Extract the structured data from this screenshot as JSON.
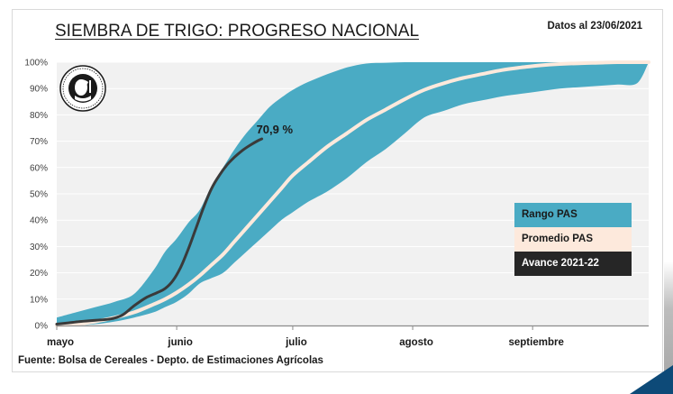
{
  "header": {
    "title": "SIEMBRA DE TRIGO: PROGRESO NACIONAL",
    "date_note": "Datos al 23/06/2021"
  },
  "footer": {
    "source": "Fuente: Bolsa de Cereales - Depto. de Estimaciones Agrícolas"
  },
  "logo": {
    "text": "Concordia et Labore · Buenos Aires · 1854"
  },
  "colors": {
    "range": "#4aabc4",
    "average": "#fde9dc",
    "current": "#3a3a3a",
    "plot_bg": "#f1f1f1",
    "grid": "#ffffff",
    "legend_dark": "#262626"
  },
  "chart_data": {
    "type": "area",
    "title": "SIEMBRA DE TRIGO: PROGRESO NACIONAL",
    "xlabel": "",
    "ylabel": "",
    "x_unit": "days since May 1",
    "xlim": [
      0,
      153
    ],
    "ylim": [
      0,
      100
    ],
    "grid": true,
    "x_ticks": [
      {
        "value": 0,
        "label": "mayo"
      },
      {
        "value": 31,
        "label": "junio"
      },
      {
        "value": 61,
        "label": "julio"
      },
      {
        "value": 92,
        "label": "agosto"
      },
      {
        "value": 123,
        "label": "septiembre"
      }
    ],
    "y_ticks": [
      {
        "value": 0,
        "label": "0%"
      },
      {
        "value": 10,
        "label": "10%"
      },
      {
        "value": 20,
        "label": "20%"
      },
      {
        "value": 30,
        "label": "30%"
      },
      {
        "value": 40,
        "label": "40%"
      },
      {
        "value": 50,
        "label": "50%"
      },
      {
        "value": 60,
        "label": "60%"
      },
      {
        "value": 70,
        "label": "70%"
      },
      {
        "value": 80,
        "label": "80%"
      },
      {
        "value": 90,
        "label": "90%"
      },
      {
        "value": 100,
        "label": "100%"
      }
    ],
    "series": [
      {
        "name": "Rango PAS",
        "kind": "band",
        "x": [
          0,
          5,
          10,
          15,
          20,
          25,
          28,
          31,
          34,
          37,
          40,
          43,
          46,
          49,
          52,
          55,
          58,
          61,
          65,
          70,
          75,
          80,
          85,
          90,
          95,
          100,
          105,
          110,
          115,
          120,
          125,
          130,
          135,
          140,
          145,
          150,
          153
        ],
        "upper": [
          3,
          5,
          7,
          9,
          12,
          21,
          28,
          33,
          39,
          44,
          53,
          60,
          67,
          73,
          78,
          83,
          86.5,
          89.5,
          92.5,
          95.5,
          98,
          99.5,
          99.8,
          100,
          100,
          100,
          100,
          100,
          100,
          100,
          100,
          100,
          100,
          100,
          100,
          100,
          100
        ],
        "lower": [
          0,
          0,
          0.5,
          1.5,
          3,
          5,
          7,
          9,
          12,
          16,
          18,
          20,
          24,
          28,
          32,
          36,
          40,
          43,
          47,
          51,
          56,
          62,
          67,
          73,
          79,
          81.5,
          84,
          85.5,
          87,
          88,
          89,
          90,
          90.5,
          91,
          91.5,
          92,
          100
        ]
      },
      {
        "name": "Promedio PAS",
        "kind": "line",
        "x": [
          0,
          5,
          10,
          15,
          20,
          25,
          28,
          31,
          34,
          37,
          40,
          43,
          46,
          49,
          52,
          55,
          58,
          61,
          65,
          70,
          75,
          80,
          85,
          90,
          95,
          100,
          105,
          110,
          115,
          120,
          125,
          130,
          135,
          140,
          145,
          150,
          153
        ],
        "values": [
          0,
          0.5,
          1.5,
          3,
          5,
          8,
          10,
          12.5,
          15.5,
          19,
          23,
          27,
          32,
          37,
          42,
          47,
          52,
          57,
          62,
          68,
          73,
          78,
          82,
          86,
          89.5,
          92,
          94,
          95.5,
          97,
          98,
          98.8,
          99.3,
          99.6,
          99.8,
          100,
          100,
          100
        ]
      },
      {
        "name": "Avance 2021-22",
        "kind": "line",
        "x": [
          0,
          3,
          6,
          10,
          14,
          17,
          20,
          23,
          26,
          28,
          30,
          32,
          34,
          36,
          38,
          40,
          42,
          44,
          46,
          48,
          50,
          52,
          53
        ],
        "values": [
          0.5,
          1,
          1.5,
          2,
          2.5,
          4,
          7.5,
          10.5,
          12.5,
          14,
          17,
          22,
          29,
          37,
          45,
          52,
          57,
          61,
          64,
          66.5,
          68.5,
          70.2,
          70.9
        ]
      }
    ],
    "annotations": [
      {
        "x": 53,
        "y": 70.9,
        "text": "70,9 %"
      }
    ],
    "legend": {
      "position": "bottom-right",
      "entries": [
        "Rango PAS",
        "Promedio PAS",
        "Avance 2021-22"
      ]
    }
  }
}
